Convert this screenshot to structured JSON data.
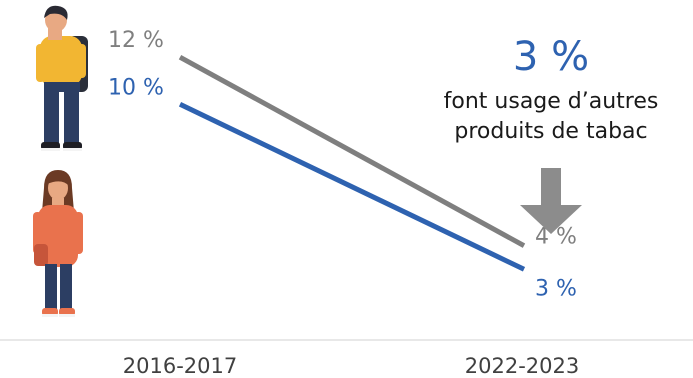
{
  "chart_data": {
    "type": "line",
    "categories": [
      "2016-2017",
      "2022-2023"
    ],
    "series": [
      {
        "values": [
          12,
          4
        ],
        "labels": [
          "12 %",
          "4 %"
        ],
        "color": "#7f7f7f"
      },
      {
        "values": [
          10,
          3
        ],
        "labels": [
          "10 %",
          "3 %"
        ],
        "color": "#2e62b0"
      }
    ],
    "ylim": [
      0,
      14
    ],
    "grid": false,
    "legend": "none",
    "annotation": {
      "value": "3 %",
      "text_line1": "font usage d’autres",
      "text_line2": "produits de tabac",
      "value_color": "#2e62b0",
      "arrow_color": "#8c8c8c"
    },
    "axis_color": "#d9d9d9"
  },
  "icons": [
    "boy-student-icon",
    "girl-student-icon"
  ]
}
